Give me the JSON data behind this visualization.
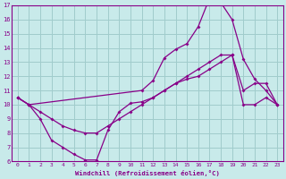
{
  "xlabel": "Windchill (Refroidissement éolien,°C)",
  "bg_color": "#c8eaea",
  "grid_color": "#a0cccc",
  "line_color": "#880088",
  "xlim": [
    -0.5,
    23.5
  ],
  "ylim": [
    6,
    17
  ],
  "xticks": [
    0,
    1,
    2,
    3,
    4,
    5,
    6,
    7,
    8,
    9,
    10,
    11,
    12,
    13,
    14,
    15,
    16,
    17,
    18,
    19,
    20,
    21,
    22,
    23
  ],
  "yticks": [
    6,
    7,
    8,
    9,
    10,
    11,
    12,
    13,
    14,
    15,
    16,
    17
  ],
  "series1_x": [
    0,
    1,
    2,
    3,
    4,
    5,
    6,
    7,
    8,
    9,
    10,
    11,
    12,
    13,
    14,
    15,
    16,
    17,
    18,
    19,
    20,
    21,
    22,
    23
  ],
  "series1_y": [
    10.5,
    10.0,
    9.0,
    7.5,
    7.0,
    6.5,
    6.1,
    6.1,
    8.2,
    9.5,
    10.1,
    10.2,
    10.5,
    11.0,
    11.5,
    11.8,
    12.0,
    12.5,
    13.0,
    13.5,
    11.0,
    11.5,
    11.5,
    10.0
  ],
  "series2_x": [
    0,
    1,
    2,
    3,
    4,
    5,
    6,
    7,
    8,
    9,
    10,
    11,
    12,
    13,
    14,
    15,
    16,
    17,
    18,
    19,
    20,
    21,
    22,
    23
  ],
  "series2_y": [
    10.5,
    10.0,
    9.5,
    9.0,
    8.5,
    8.2,
    8.0,
    8.0,
    8.5,
    9.0,
    9.5,
    10.0,
    10.5,
    11.0,
    11.5,
    12.0,
    12.5,
    13.0,
    13.5,
    13.5,
    10.0,
    10.0,
    10.5,
    10.0
  ],
  "series3_x": [
    0,
    1,
    11,
    12,
    13,
    14,
    15,
    16,
    17,
    18,
    19,
    20,
    21,
    22,
    23
  ],
  "series3_y": [
    10.5,
    10.0,
    11.0,
    11.7,
    13.3,
    13.9,
    14.3,
    15.5,
    17.5,
    17.2,
    16.0,
    13.2,
    11.8,
    11.0,
    10.0
  ]
}
